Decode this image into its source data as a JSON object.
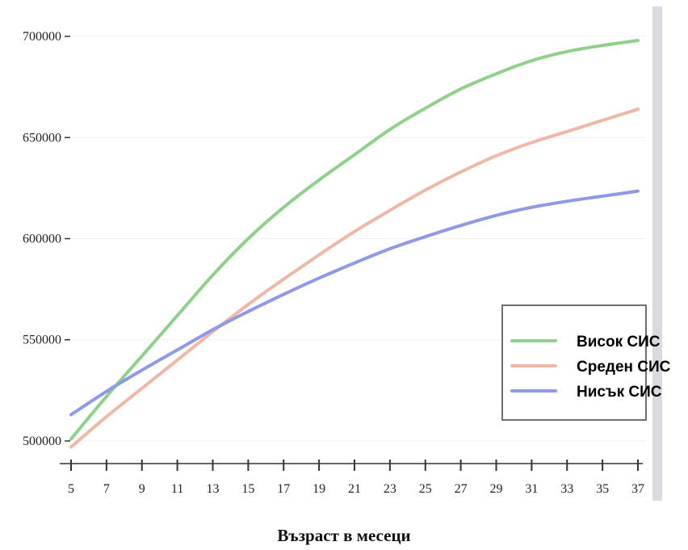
{
  "chart_data": {
    "type": "line",
    "title": "",
    "xlabel": "Възраст в месеци",
    "ylabel": "",
    "x": [
      5,
      7,
      9,
      11,
      13,
      15,
      17,
      19,
      21,
      23,
      25,
      27,
      29,
      31,
      33,
      35,
      37
    ],
    "xticks": [
      "5",
      "7",
      "9",
      "11",
      "13",
      "15",
      "17",
      "19",
      "21",
      "23",
      "25",
      "27",
      "29",
      "31",
      "33",
      "35",
      "37"
    ],
    "yticks": [
      "500000",
      "550000",
      "600000",
      "650000",
      "700000"
    ],
    "ylim": [
      492000,
      710000
    ],
    "xlim": [
      5,
      37
    ],
    "grid": true,
    "legend_position": "right",
    "series": [
      {
        "name": "Висок СИС",
        "color": "#8fd08a",
        "values": [
          501000,
          522000,
          542000,
          562000,
          582000,
          600000,
          615500,
          629000,
          641500,
          654000,
          664500,
          674000,
          681500,
          688000,
          692500,
          695500,
          698000
        ]
      },
      {
        "name": "Среден СИС",
        "color": "#efb8a6",
        "values": [
          497000,
          512000,
          526000,
          540000,
          554000,
          567500,
          580000,
          592000,
          603500,
          614000,
          624000,
          633000,
          641000,
          647500,
          653000,
          658500,
          664000
        ]
      },
      {
        "name": "Нисък СИС",
        "color": "#8e99e8",
        "values": [
          513000,
          524500,
          535000,
          545000,
          555000,
          564000,
          572500,
          580500,
          588000,
          595000,
          601000,
          606500,
          611500,
          615500,
          618500,
          621000,
          623500
        ]
      }
    ]
  }
}
